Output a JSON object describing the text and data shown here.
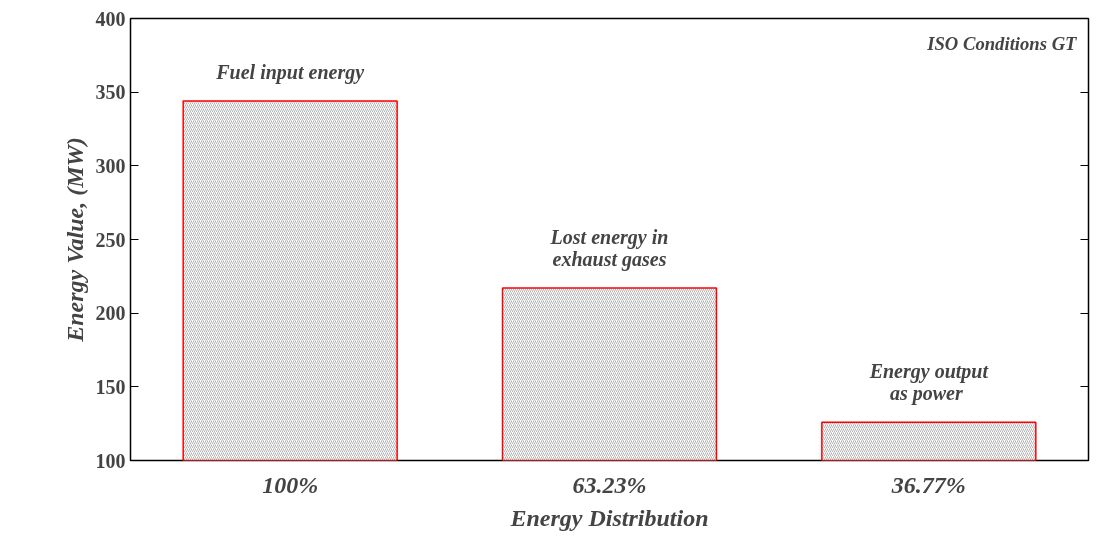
{
  "chart_data": {
    "type": "bar",
    "xlabel": "Energy Distribution",
    "ylabel": "Energy Value, (MW)",
    "categories": [
      "100%",
      "63.23%",
      "36.77%"
    ],
    "series": [
      {
        "color": "#ff0000",
        "values": [
          344,
          217,
          126
        ]
      }
    ],
    "ylim": [
      100,
      400
    ],
    "yticks": [
      100,
      150,
      200,
      250,
      300,
      350,
      400
    ],
    "grid": false,
    "annotations": [
      "Fuel input energy",
      "Lost energy in\nexhaust gases",
      "Energy output\n as power",
      "ISO Conditions GT"
    ]
  }
}
